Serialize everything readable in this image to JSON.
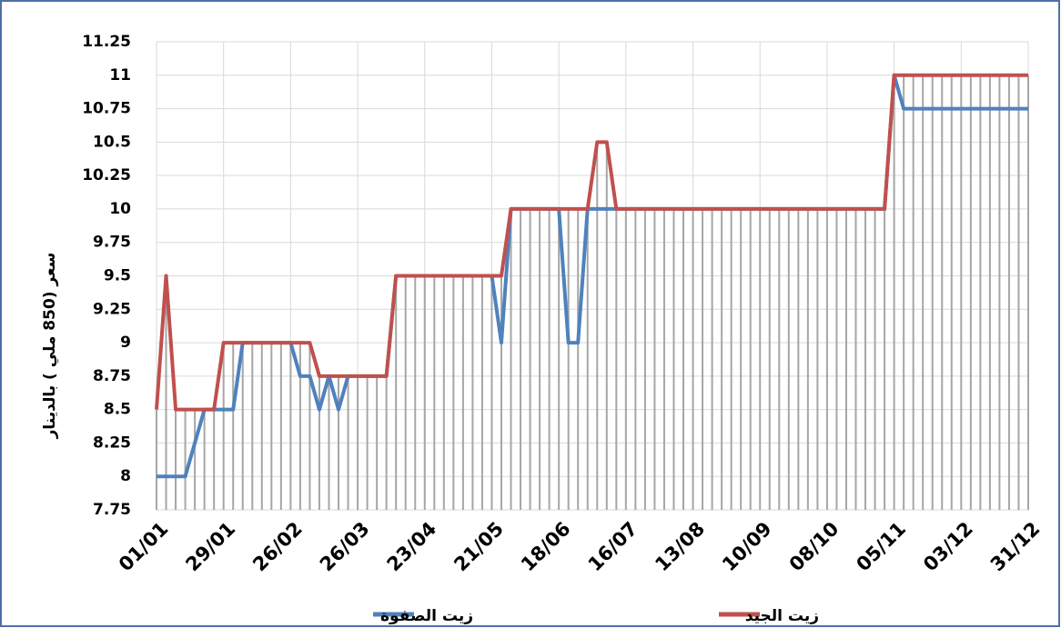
{
  "chart_data": {
    "type": "line",
    "y_label": "سعر (850 ملي ) بالدينار",
    "x": [
      1,
      5,
      9,
      13,
      17,
      21,
      25,
      29,
      33,
      37,
      41,
      45,
      49,
      53,
      57,
      61,
      65,
      69,
      73,
      77,
      81,
      85,
      89,
      93,
      97,
      101,
      105,
      109,
      113,
      117,
      121,
      125,
      129,
      133,
      137,
      141,
      145,
      149,
      153,
      157,
      161,
      165,
      169,
      173,
      177,
      181,
      185,
      189,
      193,
      197,
      201,
      205,
      209,
      213,
      217,
      221,
      225,
      229,
      233,
      237,
      241,
      245,
      249,
      253,
      257,
      261,
      265,
      269,
      273,
      277,
      281,
      285,
      289,
      293,
      297,
      301,
      305,
      309,
      313,
      317,
      321,
      325,
      329,
      333,
      337,
      341,
      345,
      349,
      353,
      357,
      361,
      365
    ],
    "series": [
      {
        "name": "زيت الصفوة",
        "color": "#4f81bd",
        "values": [
          8,
          8,
          8,
          8,
          8.25,
          8.5,
          8.5,
          8.5,
          8.5,
          9,
          9,
          9,
          9,
          9,
          9,
          8.75,
          8.75,
          8.5,
          8.75,
          8.5,
          8.75,
          8.75,
          8.75,
          8.75,
          8.75,
          9.5,
          9.5,
          9.5,
          9.5,
          9.5,
          9.5,
          9.5,
          9.5,
          9.5,
          9.5,
          9.5,
          9,
          10,
          10,
          10,
          10,
          10,
          10,
          9,
          9,
          10,
          10,
          10,
          10,
          10,
          10,
          10,
          10,
          10,
          10,
          10,
          10,
          10,
          10,
          10,
          10,
          10,
          10,
          10,
          10,
          10,
          10,
          10,
          10,
          10,
          10,
          10,
          10,
          10,
          10,
          10,
          10,
          11,
          10.75,
          10.75,
          10.75,
          10.75,
          10.75,
          10.75,
          10.75,
          10.75,
          10.75,
          10.75,
          10.75,
          10.75,
          10.75,
          10.75
        ]
      },
      {
        "name": "زيت الجيد",
        "color": "#c0504d",
        "values": [
          8.5,
          9.5,
          8.5,
          8.5,
          8.5,
          8.5,
          8.5,
          9,
          9,
          9,
          9,
          9,
          9,
          9,
          9,
          9,
          9,
          8.75,
          8.75,
          8.75,
          8.75,
          8.75,
          8.75,
          8.75,
          8.75,
          9.5,
          9.5,
          9.5,
          9.5,
          9.5,
          9.5,
          9.5,
          9.5,
          9.5,
          9.5,
          9.5,
          9.5,
          10,
          10,
          10,
          10,
          10,
          10,
          10,
          10,
          10,
          10.5,
          10.5,
          10,
          10,
          10,
          10,
          10,
          10,
          10,
          10,
          10,
          10,
          10,
          10,
          10,
          10,
          10,
          10,
          10,
          10,
          10,
          10,
          10,
          10,
          10,
          10,
          10,
          10,
          10,
          10,
          10,
          11,
          11,
          11,
          11,
          11,
          11,
          11,
          11,
          11,
          11,
          11,
          11,
          11,
          11,
          11
        ]
      }
    ],
    "xlim": [
      1,
      365
    ],
    "xticks": [
      {
        "value": 1,
        "label": "01/01"
      },
      {
        "value": 29,
        "label": "29/01"
      },
      {
        "value": 57,
        "label": "26/02"
      },
      {
        "value": 85,
        "label": "26/03"
      },
      {
        "value": 113,
        "label": "23/04"
      },
      {
        "value": 141,
        "label": "21/05"
      },
      {
        "value": 169,
        "label": "18/06"
      },
      {
        "value": 197,
        "label": "16/07"
      },
      {
        "value": 225,
        "label": "13/08"
      },
      {
        "value": 253,
        "label": "10/09"
      },
      {
        "value": 281,
        "label": "08/10"
      },
      {
        "value": 309,
        "label": "05/11"
      },
      {
        "value": 337,
        "label": "03/12"
      },
      {
        "value": 365,
        "label": "31/12"
      }
    ],
    "ylim": [
      7.75,
      11.25
    ],
    "yticks": [
      7.75,
      8,
      8.25,
      8.5,
      8.75,
      9,
      9.25,
      9.5,
      9.75,
      10,
      10.25,
      10.5,
      10.75,
      11,
      11.25
    ],
    "grid": true,
    "drop_lines": true
  }
}
